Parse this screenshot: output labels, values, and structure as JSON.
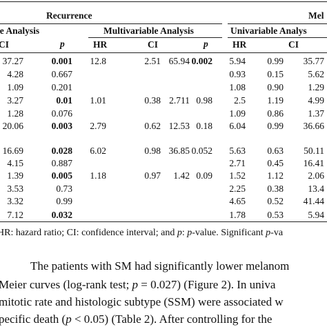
{
  "header": {
    "group_recurrence": "Recurrence",
    "group_melanoma": "Mel",
    "sub_univariable_left": "le Analysis",
    "sub_multivariable": "Multivariable Analysis",
    "sub_univariable_right": "Univariable Analys",
    "columns": {
      "ci_left": "CI",
      "p_left": "p",
      "hr_mid": "HR",
      "ci_mid": "CI",
      "p_mid": "p",
      "hr_right": "HR",
      "ci_right": "CI"
    }
  },
  "rows": [
    [
      "37.27",
      "0.001",
      "12.8",
      "2.51",
      "65.94",
      "0.002",
      "5.94",
      "0.99",
      "35.77"
    ],
    [
      "4.28",
      "0.667",
      "",
      "",
      "",
      "",
      "0.93",
      "0.15",
      "5.62"
    ],
    [
      "1.09",
      "0.201",
      "",
      "",
      "",
      "",
      "1.08",
      "0.90",
      "1.29"
    ],
    [
      "3.27",
      "0.01",
      "1.01",
      "0.38",
      "2.711",
      "0.98",
      "2.5",
      "1.19",
      "4.99"
    ],
    [
      "1.28",
      "0.076",
      "",
      "",
      "",
      "",
      "1.09",
      "0.86",
      "1.37"
    ],
    [
      "20.06",
      "0.003",
      "2.79",
      "0.62",
      "12.53",
      "0.18",
      "6.04",
      "0.99",
      "36.66"
    ],
    [
      "16.69",
      "0.028",
      "6.02",
      "0.98",
      "36.85",
      "0.052",
      "5.63",
      "0.63",
      "50.11"
    ],
    [
      "4.15",
      "0.887",
      "",
      "",
      "",
      "",
      "2.71",
      "0.45",
      "16.41"
    ],
    [
      "1.39",
      "0.005",
      "1.18",
      "0.97",
      "1.42",
      "0.09",
      "1.52",
      "1.12",
      "2.06"
    ],
    [
      "3.53",
      "0.73",
      "",
      "",
      "",
      "",
      "2.25",
      "0.38",
      "13.4"
    ],
    [
      "3.32",
      "0.99",
      "",
      "",
      "",
      "",
      "4.65",
      "0.52",
      "41.44"
    ],
    [
      "7.12",
      "0.032",
      "",
      "",
      "",
      "",
      "1.78",
      "0.53",
      "5.94"
    ]
  ],
  "bold_flags": [
    [
      false,
      true,
      false,
      false,
      false,
      true,
      false,
      false,
      false
    ],
    [
      false,
      false,
      false,
      false,
      false,
      false,
      false,
      false,
      false
    ],
    [
      false,
      false,
      false,
      false,
      false,
      false,
      false,
      false,
      false
    ],
    [
      false,
      true,
      false,
      false,
      false,
      false,
      false,
      false,
      false
    ],
    [
      false,
      false,
      false,
      false,
      false,
      false,
      false,
      false,
      false
    ],
    [
      false,
      true,
      false,
      false,
      false,
      false,
      false,
      false,
      false
    ],
    [
      false,
      true,
      false,
      false,
      false,
      false,
      false,
      false,
      false
    ],
    [
      false,
      false,
      false,
      false,
      false,
      false,
      false,
      false,
      false
    ],
    [
      false,
      true,
      false,
      false,
      false,
      false,
      false,
      false,
      false
    ],
    [
      false,
      false,
      false,
      false,
      false,
      false,
      false,
      false,
      false
    ],
    [
      false,
      false,
      false,
      false,
      false,
      false,
      false,
      false,
      false
    ],
    [
      false,
      true,
      false,
      false,
      false,
      false,
      false,
      false,
      false
    ]
  ],
  "footnote": {
    "part1": "HR: hazard ratio; CI: confidence interval; and ",
    "p1": "p",
    "part2": ": ",
    "p2": "p",
    "part3": "-value. Significant ",
    "p3": "p",
    "part4": "-va"
  },
  "body_text": {
    "line1": "The patients with SM had significantly lower melanom",
    "line2_a": "Meier curves (log-rank test; ",
    "line2_p": "p",
    "line2_b": " = 0.027) (Figure 2). In univa",
    "line3": "mitotic rate and histologic subtype (SSM) were associated w",
    "line4_a": "pecific death (",
    "line4_p": "p",
    "line4_b": " < 0.05) (Table 2). After controlling for the"
  }
}
